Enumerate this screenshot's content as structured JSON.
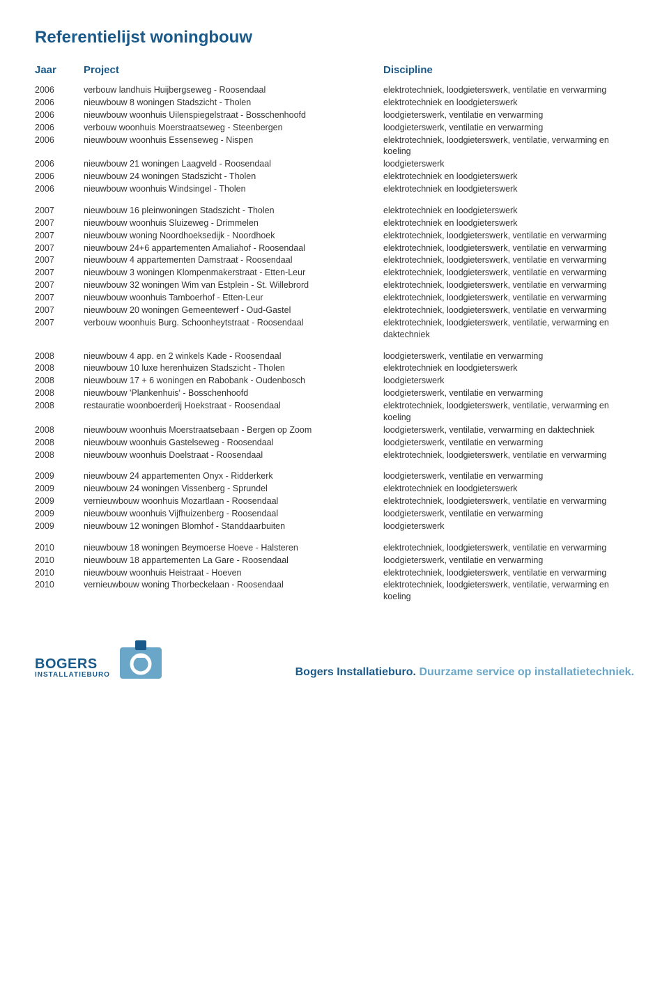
{
  "title": "Referentielijst woningbouw",
  "headers": {
    "year": "Jaar",
    "project": "Project",
    "discipline": "Discipline"
  },
  "logo": {
    "main": "BOGERS",
    "sub": "INSTALLATIEBURO"
  },
  "tagline": {
    "part1": "Bogers Installatieburo. ",
    "part2": "Duurzame service op installatietechniek."
  },
  "colors": {
    "brand": "#1a5a8a",
    "brand_light": "#6aa6c8",
    "text": "#333333",
    "background": "#ffffff"
  },
  "groups": [
    {
      "rows": [
        {
          "year": "2006",
          "project": "verbouw landhuis Huijbergseweg - Roosendaal",
          "discipline": "elektrotechniek, loodgieterswerk, ventilatie en verwarming"
        },
        {
          "year": "2006",
          "project": "nieuwbouw 8 woningen Stadszicht - Tholen",
          "discipline": "elektrotechniek en loodgieterswerk"
        },
        {
          "year": "2006",
          "project": "nieuwbouw woonhuis Uilenspiegelstraat - Bosschenhoofd",
          "discipline": "loodgieterswerk, ventilatie en verwarming"
        },
        {
          "year": "2006",
          "project": "verbouw woonhuis Moerstraatseweg - Steenbergen",
          "discipline": "loodgieterswerk, ventilatie en verwarming"
        },
        {
          "year": "2006",
          "project": "nieuwbouw woonhuis Essenseweg - Nispen",
          "discipline": "elektrotechniek, loodgieterswerk, ventilatie, verwarming en koeling"
        },
        {
          "year": "2006",
          "project": "nieuwbouw 21 woningen Laagveld - Roosendaal",
          "discipline": "loodgieterswerk"
        },
        {
          "year": "2006",
          "project": "nieuwbouw 24 woningen Stadszicht - Tholen",
          "discipline": "elektrotechniek en loodgieterswerk"
        },
        {
          "year": "2006",
          "project": "nieuwbouw woonhuis Windsingel - Tholen",
          "discipline": "elektrotechniek en loodgieterswerk"
        }
      ]
    },
    {
      "rows": [
        {
          "year": "2007",
          "project": "nieuwbouw 16 pleinwoningen Stadszicht - Tholen",
          "discipline": "elektrotechniek en loodgieterswerk"
        },
        {
          "year": "2007",
          "project": "nieuwbouw woonhuis Sluizeweg - Drimmelen",
          "discipline": "elektrotechniek en loodgieterswerk"
        },
        {
          "year": "2007",
          "project": "nieuwbouw woning Noordhoeksedijk - Noordhoek",
          "discipline": "elektrotechniek, loodgieterswerk, ventilatie en verwarming"
        },
        {
          "year": "2007",
          "project": "nieuwbouw 24+6 appartementen Amaliahof - Roosendaal",
          "discipline": "elektrotechniek, loodgieterswerk, ventilatie en verwarming"
        },
        {
          "year": "2007",
          "project": "nieuwbouw 4 appartementen Damstraat - Roosendaal",
          "discipline": "elektrotechniek, loodgieterswerk, ventilatie en verwarming"
        },
        {
          "year": "2007",
          "project": "nieuwbouw 3 woningen Klompenmakerstraat - Etten-Leur",
          "discipline": "elektrotechniek, loodgieterswerk, ventilatie en verwarming"
        },
        {
          "year": "2007",
          "project": "nieuwbouw 32 woningen Wim van Estplein - St. Willebrord",
          "discipline": "elektrotechniek, loodgieterswerk, ventilatie en verwarming"
        },
        {
          "year": "2007",
          "project": "nieuwbouw woonhuis Tamboerhof - Etten-Leur",
          "discipline": "elektrotechniek, loodgieterswerk, ventilatie en verwarming"
        },
        {
          "year": "2007",
          "project": "nieuwbouw 20 woningen Gemeentewerf - Oud-Gastel",
          "discipline": "elektrotechniek, loodgieterswerk, ventilatie en verwarming"
        },
        {
          "year": "2007",
          "project": "verbouw woonhuis Burg. Schoonheytstraat - Roosendaal",
          "discipline": "elektrotechniek, loodgieterswerk, ventilatie,  verwarming en daktechniek"
        }
      ]
    },
    {
      "rows": [
        {
          "year": "2008",
          "project": "nieuwbouw 4 app. en 2 winkels Kade - Roosendaal",
          "discipline": "loodgieterswerk, ventilatie en verwarming"
        },
        {
          "year": "2008",
          "project": "nieuwbouw 10 luxe herenhuizen Stadszicht - Tholen",
          "discipline": "elektrotechniek en loodgieterswerk"
        },
        {
          "year": "2008",
          "project": "nieuwbouw 17 + 6 woningen en Rabobank - Oudenbosch",
          "discipline": "loodgieterswerk"
        },
        {
          "year": "2008",
          "project": "nieuwbouw 'Plankenhuis' - Bosschenhoofd",
          "discipline": "loodgieterswerk, ventilatie en verwarming"
        },
        {
          "year": "2008",
          "project": "restauratie woonboerderij Hoekstraat - Roosendaal",
          "discipline": "elektrotechniek, loodgieterswerk, ventilatie, verwarming en koeling"
        },
        {
          "year": "2008",
          "project": "nieuwbouw woonhuis Moerstraatsebaan - Bergen op Zoom",
          "discipline": "loodgieterswerk, ventilatie,  verwarming en daktechniek"
        },
        {
          "year": "2008",
          "project": "nieuwbouw woonhuis Gastelseweg - Roosendaal",
          "discipline": "loodgieterswerk, ventilatie en verwarming"
        },
        {
          "year": "2008",
          "project": "nieuwbouw woonhuis Doelstraat - Roosendaal",
          "discipline": "elektrotechniek, loodgieterswerk, ventilatie en verwarming"
        }
      ]
    },
    {
      "rows": [
        {
          "year": "2009",
          "project": "nieuwbouw 24 appartementen Onyx - Ridderkerk",
          "discipline": "loodgieterswerk, ventilatie en verwarming"
        },
        {
          "year": "2009",
          "project": "nieuwbouw 24 woningen Vissenberg - Sprundel",
          "discipline": "elektrotechniek en loodgieterswerk"
        },
        {
          "year": "2009",
          "project": "vernieuwbouw woonhuis Mozartlaan - Roosendaal",
          "discipline": "elektrotechniek, loodgieterswerk, ventilatie en verwarming"
        },
        {
          "year": "2009",
          "project": "nieuwbouw woonhuis Vijfhuizenberg - Roosendaal",
          "discipline": "loodgieterswerk, ventilatie en verwarming"
        },
        {
          "year": "2009",
          "project": "nieuwbouw 12 woningen Blomhof - Standdaarbuiten",
          "discipline": "loodgieterswerk"
        }
      ]
    },
    {
      "rows": [
        {
          "year": "2010",
          "project": "nieuwbouw 18 woningen Beymoerse Hoeve - Halsteren",
          "discipline": "elektrotechniek, loodgieterswerk, ventilatie en verwarming"
        },
        {
          "year": "2010",
          "project": "nieuwbouw 18 appartementen La Gare - Roosendaal",
          "discipline": "loodgieterswerk, ventilatie en verwarming"
        },
        {
          "year": "2010",
          "project": "nieuwbouw woonhuis Heistraat - Hoeven",
          "discipline": "elektrotechniek, loodgieterswerk, ventilatie en verwarming"
        },
        {
          "year": "2010",
          "project": "vernieuwbouw woning Thorbeckelaan - Roosendaal",
          "discipline": "elektrotechniek, loodgieterswerk, ventilatie, verwarming en koeling"
        }
      ]
    }
  ]
}
